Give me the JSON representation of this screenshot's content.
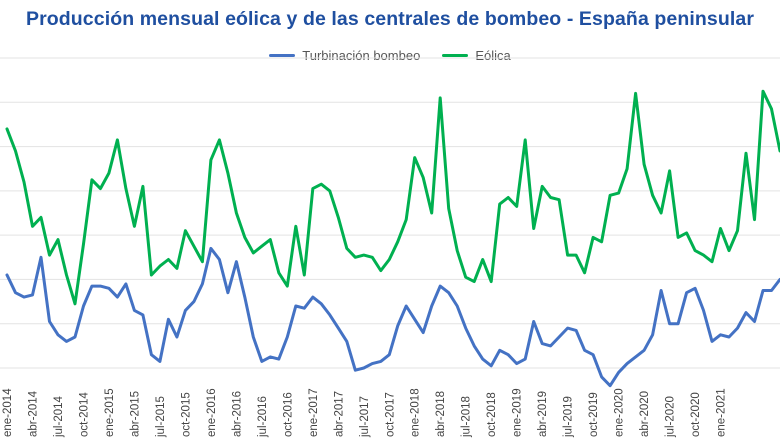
{
  "chart_data": {
    "type": "line",
    "title": "Producción mensual eólica y de las centrales de bombeo - España peninsular",
    "xlabel": "",
    "ylabel": "",
    "grid": true,
    "legend_position": "top-center",
    "ylim": [
      0,
      7
    ],
    "x_tick_labels": [
      "ene-2014",
      "abr-2014",
      "jul-2014",
      "oct-2014",
      "ene-2015",
      "abr-2015",
      "jul-2015",
      "oct-2015",
      "ene-2016",
      "abr-2016",
      "jul-2016",
      "oct-2016",
      "ene-2017",
      "abr-2017",
      "jul-2017",
      "oct-2017",
      "ene-2018",
      "abr-2018",
      "jul-2018",
      "oct-2018",
      "ene-2019",
      "abr-2019",
      "jul-2019",
      "oct-2019",
      "ene-2020",
      "abr-2020",
      "jul-2020",
      "oct-2020",
      "ene-2021"
    ],
    "series": [
      {
        "name": "Turbinación bombeo",
        "color": "#4472c4",
        "values": [
          2.1,
          1.7,
          1.6,
          1.65,
          2.5,
          1.05,
          0.75,
          0.6,
          0.7,
          1.4,
          1.85,
          1.85,
          1.8,
          1.6,
          1.9,
          1.3,
          1.2,
          0.3,
          0.15,
          1.1,
          0.7,
          1.3,
          1.5,
          1.9,
          2.7,
          2.45,
          1.7,
          2.4,
          1.6,
          0.7,
          0.15,
          0.25,
          0.2,
          0.7,
          1.4,
          1.35,
          1.6,
          1.45,
          1.2,
          0.9,
          0.6,
          -0.05,
          0.0,
          0.1,
          0.15,
          0.3,
          0.95,
          1.4,
          1.1,
          0.8,
          1.4,
          1.85,
          1.7,
          1.4,
          0.9,
          0.5,
          0.2,
          0.05,
          0.4,
          0.3,
          0.1,
          0.2,
          1.05,
          0.55,
          0.5,
          0.7,
          0.9,
          0.85,
          0.4,
          0.3,
          -0.2,
          -0.4,
          -0.1,
          0.1,
          0.25,
          0.4,
          0.75,
          1.75,
          1.0,
          1.0,
          1.7,
          1.8,
          1.3,
          0.6,
          0.75,
          0.7,
          0.9,
          1.25,
          1.05,
          1.75,
          1.75,
          2.0
        ]
      },
      {
        "name": "Eólica",
        "color": "#00b050",
        "values": [
          5.4,
          4.9,
          4.2,
          3.2,
          3.4,
          2.55,
          2.9,
          2.1,
          1.45,
          2.8,
          4.25,
          4.05,
          4.4,
          5.15,
          4.05,
          3.2,
          4.1,
          2.1,
          2.3,
          2.45,
          2.25,
          3.1,
          2.75,
          2.4,
          4.7,
          5.15,
          4.4,
          3.5,
          2.95,
          2.6,
          2.75,
          2.9,
          2.15,
          1.85,
          3.2,
          2.1,
          4.05,
          4.15,
          4.0,
          3.4,
          2.7,
          2.5,
          2.55,
          2.5,
          2.2,
          2.45,
          2.85,
          3.35,
          4.75,
          4.3,
          3.5,
          6.1,
          3.6,
          2.65,
          2.05,
          1.95,
          2.45,
          1.95,
          3.7,
          3.85,
          3.65,
          5.15,
          3.15,
          4.1,
          3.85,
          3.8,
          2.55,
          2.55,
          2.15,
          2.95,
          2.85,
          3.9,
          3.95,
          4.5,
          6.2,
          4.6,
          3.9,
          3.5,
          4.45,
          2.95,
          3.05,
          2.65,
          2.55,
          2.4,
          3.15,
          2.65,
          3.1,
          4.85,
          3.35,
          6.25,
          5.85,
          4.9
        ]
      }
    ]
  }
}
